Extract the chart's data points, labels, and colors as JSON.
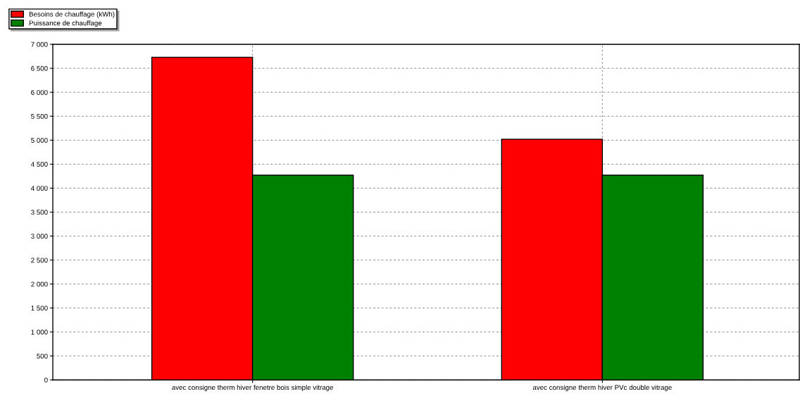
{
  "chart_data": {
    "type": "bar",
    "categories": [
      "avec consigne therm hiver fenetre bois simple vitrage",
      "avec consigne therm hiver PVc double vitrage"
    ],
    "series": [
      {
        "name": "Besoins de chauffage (kWh)",
        "color": "#ff0000",
        "values": [
          6730,
          5020
        ]
      },
      {
        "name": "Puissance de chauffage",
        "color": "#008000",
        "values": [
          4270,
          4270
        ]
      }
    ],
    "ylim": [
      0,
      7000
    ],
    "yticks": [
      0,
      500,
      {
        "value": 1000,
        "label": "1 000"
      },
      {
        "value": 1500,
        "label": "1 500"
      },
      {
        "value": 2000,
        "label": "2 000"
      },
      {
        "value": 2500,
        "label": "2 500"
      },
      {
        "value": 3000,
        "label": "3 000"
      },
      {
        "value": 3500,
        "label": "3 500"
      },
      {
        "value": 4000,
        "label": "4 000"
      },
      {
        "value": 4500,
        "label": "4 500"
      },
      {
        "value": 5000,
        "label": "5 000"
      },
      {
        "value": 5500,
        "label": "5 500"
      },
      {
        "value": 6000,
        "label": "6 000"
      },
      {
        "value": 6500,
        "label": "6 500"
      },
      {
        "value": 7000,
        "label": "7 000"
      }
    ],
    "grid": true,
    "legend": "top left"
  }
}
